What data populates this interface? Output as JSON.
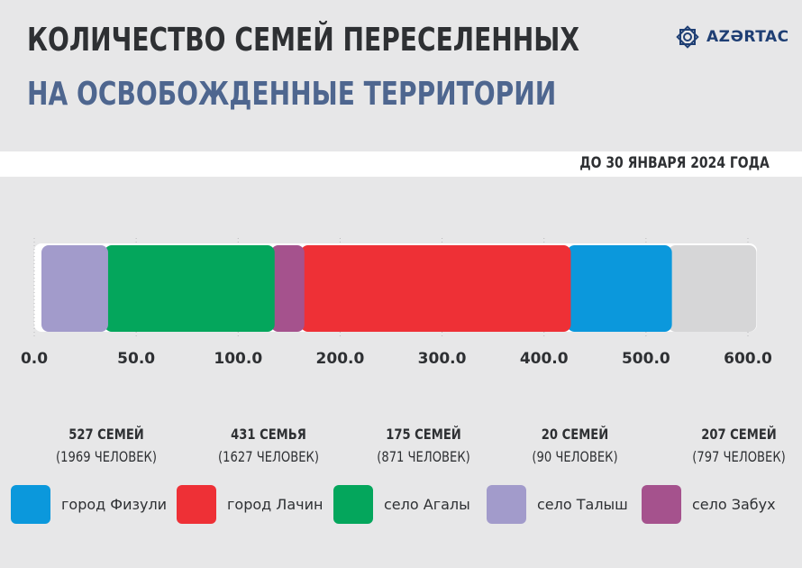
{
  "header": {
    "title_line1": "КОЛИЧЕСТВО СЕМЕЙ ПЕРЕСЕЛЕННЫХ",
    "title_line2": "НА ОСВОБОЖДЕННЫЕ ТЕРРИТОРИИ",
    "logo_text": "AZƏRTAC",
    "date": "ДО 30 ЯНВАРЯ 2024 ГОДА"
  },
  "colors": {
    "fizuli": "#0b98dc",
    "lachin": "#ee3036",
    "agaly": "#04a65c",
    "talysh": "#a29bcb",
    "zabukh": "#a5528d",
    "title_dark": "#2e3033",
    "title_blue": "#4e668f"
  },
  "stats": [
    {
      "families": "527 СЕМЕЙ",
      "people": "(1969 ЧЕЛОВЕК)"
    },
    {
      "families": "431 СЕМЬЯ",
      "people": "(1627 ЧЕЛОВЕК)"
    },
    {
      "families": "175 СЕМЕЙ",
      "people": "(871 ЧЕЛОВЕК)"
    },
    {
      "families": "20 СЕМЕЙ",
      "people": "(90 ЧЕЛОВЕК)"
    },
    {
      "families": "207 СЕМЕЙ",
      "people": "(797 ЧЕЛОВЕК)"
    }
  ],
  "legend": [
    {
      "label": "город Физули",
      "color": "#0b98dc"
    },
    {
      "label": "город Лачин",
      "color": "#ee3036"
    },
    {
      "label": "село Агалы",
      "color": "#04a65c"
    },
    {
      "label": "село Талыш",
      "color": "#a29bcb"
    },
    {
      "label": "село Забух",
      "color": "#a5528d"
    }
  ],
  "chart_data": {
    "type": "bar",
    "orientation": "horizontal",
    "stacked": true,
    "xlim": [
      0,
      600
    ],
    "ticks": [
      "0.0",
      "50.0",
      "100.0",
      "200.0",
      "300.0",
      "400.0",
      "500.0",
      "600.0"
    ],
    "grid": true,
    "segments": [
      {
        "name": "село Талыш",
        "start": 0,
        "end": 53,
        "color": "#a29bcb"
      },
      {
        "name": "село Агалы",
        "start": 53,
        "end": 193,
        "color": "#04a65c"
      },
      {
        "name": "село Забух",
        "start": 193,
        "end": 218,
        "color": "#a5528d"
      },
      {
        "name": "город Лачин",
        "start": 218,
        "end": 442,
        "color": "#ee3036"
      },
      {
        "name": "город Физули",
        "start": 442,
        "end": 527,
        "color": "#0b98dc"
      },
      {
        "name": "",
        "start": 527,
        "end": 598,
        "color": "#d6d6d7"
      }
    ]
  }
}
